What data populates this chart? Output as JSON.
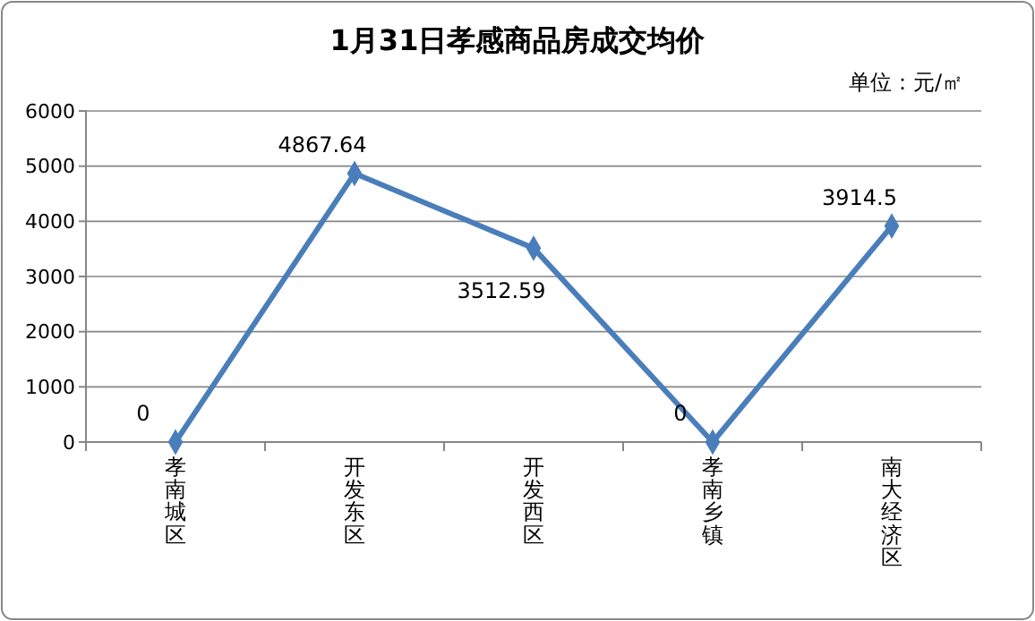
{
  "chart_data": {
    "type": "line",
    "title": "1月31日孝感商品房成交均价",
    "subtitle": "单位：元/㎡",
    "categories": [
      "孝南城区",
      "开发东区",
      "开发西区",
      "孝南乡镇",
      "南大经济区"
    ],
    "series": [
      {
        "color": "#4a7ebb",
        "values": [
          0,
          4867.64,
          3512.59,
          0,
          3914.5
        ]
      }
    ],
    "ylim": [
      0,
      6000
    ],
    "yticks": [
      0,
      1000,
      2000,
      3000,
      4000,
      5000,
      6000
    ],
    "grid": "y",
    "marker": "diamond",
    "line_style": "solid",
    "data_labels": true
  }
}
